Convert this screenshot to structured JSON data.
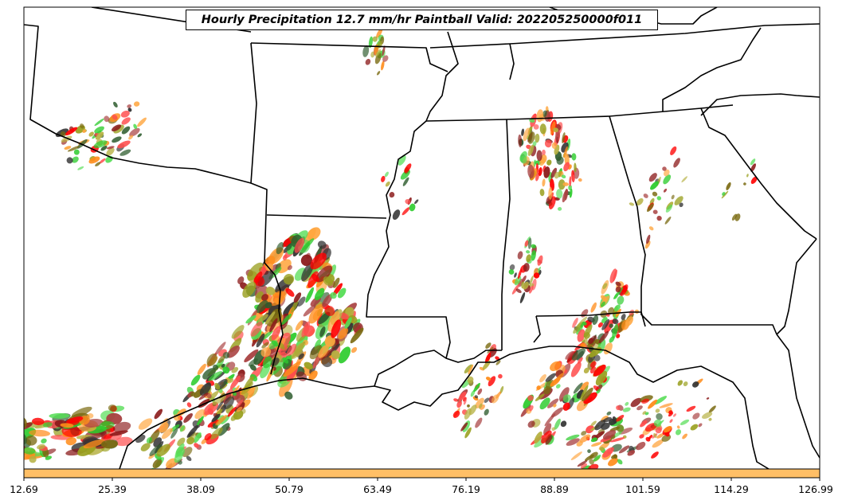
{
  "title": "Hourly Precipitation 12.7 mm/hr Paintball Valid: 202205250000f011",
  "colors": {
    "boundary": "#000000",
    "colorbar": "#ffbf66",
    "members": [
      "#ff0000",
      "#ff4d4d",
      "#ff8c1a",
      "#ffa640",
      "#2ecc2e",
      "#55dd55",
      "#9aa020",
      "#b5b040",
      "#7a6a10",
      "#8b1a1a",
      "#a84040",
      "#2e5c2e",
      "#333333"
    ]
  },
  "colorbar": {
    "ticks": [
      "12.69",
      "25.39",
      "38.09",
      "50.79",
      "63.49",
      "76.19",
      "88.89",
      "101.59",
      "114.29",
      "126.99"
    ]
  }
}
